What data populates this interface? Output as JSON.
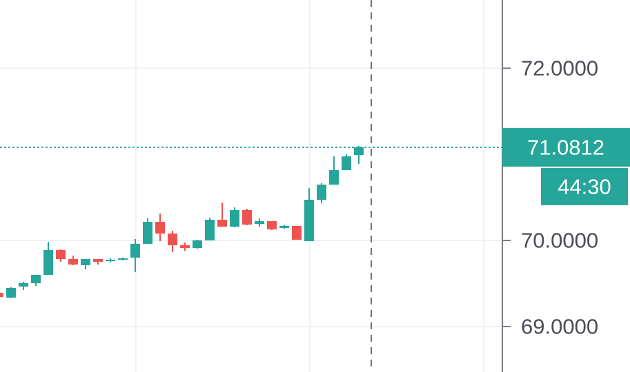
{
  "chart_data": {
    "type": "candlestick",
    "open": [
      69.392,
      69.336,
      69.464,
      69.504,
      69.6,
      69.888,
      69.784,
      69.712,
      69.784,
      69.76,
      69.776,
      69.8,
      69.96,
      70.216,
      70.08,
      69.944,
      69.912,
      70.0,
      70.24,
      70.16,
      70.352,
      70.192,
      70.224,
      70.144,
      70.168,
      69.992,
      70.472,
      70.648,
      70.816,
      70.992
    ],
    "high": [
      69.392,
      69.456,
      69.52,
      69.6,
      69.984,
      69.896,
      69.824,
      69.784,
      69.784,
      69.792,
      69.8,
      70.016,
      70.256,
      70.312,
      70.112,
      69.976,
      70.008,
      70.264,
      70.44,
      70.384,
      70.368,
      70.256,
      70.224,
      70.184,
      70.168,
      70.608,
      70.664,
      70.976,
      71.0,
      71.096
    ],
    "low": [
      69.344,
      69.328,
      69.424,
      69.472,
      69.6,
      69.752,
      69.712,
      69.664,
      69.72,
      69.744,
      69.768,
      69.632,
      69.96,
      69.992,
      69.864,
      69.88,
      69.904,
      70.0,
      70.16,
      70.152,
      70.176,
      70.16,
      70.12,
      70.136,
      70.008,
      69.992,
      70.432,
      70.648,
      70.816,
      70.888
    ],
    "close": [
      69.344,
      69.448,
      69.504,
      69.6,
      69.888,
      69.784,
      69.72,
      69.784,
      69.752,
      69.776,
      69.792,
      69.96,
      70.216,
      70.08,
      69.944,
      69.912,
      70.0,
      70.24,
      70.16,
      70.352,
      70.184,
      70.224,
      70.128,
      70.168,
      70.008,
      70.472,
      70.648,
      70.816,
      70.976,
      71.0812
    ],
    "up_color": "#26a69a",
    "down_color": "#ef5350",
    "ylim": [
      68.472,
      72.792
    ],
    "yticks": [
      {
        "value": 69,
        "label": "69.0000"
      },
      {
        "value": 70,
        "label": "70.0000"
      },
      {
        "value": 72,
        "label": "72.0000"
      }
    ],
    "grid": true,
    "last_price": {
      "value": 71.0812,
      "label": "71.0812"
    },
    "countdown": "44:30"
  }
}
